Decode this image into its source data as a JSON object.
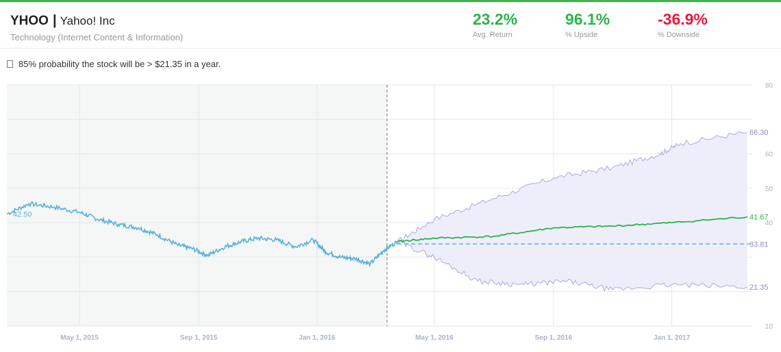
{
  "header": {
    "ticker": "YHOO",
    "separator": "|",
    "company": "Yahoo! Inc",
    "sector": "Technology (Internet Content & Information)"
  },
  "stats": [
    {
      "value": "23.2%",
      "label": "Avg. Return",
      "color": "#2db34a"
    },
    {
      "value": "96.1%",
      "label": "% Upside",
      "color": "#2db34a"
    },
    {
      "value": "-36.9%",
      "label": "% Downside",
      "color": "#e8193c"
    }
  ],
  "probability": {
    "icon": "info-icon",
    "text": "85% probability the stock will be > $21.35 in a year."
  },
  "colors": {
    "historical": "#5ab0d8",
    "median": "#2db34a",
    "band": "#a9a9e0",
    "reference": "#5ab0d8"
  },
  "chart_data": {
    "type": "line",
    "x_tick_labels": [
      "May 1, 2015",
      "Sep 1, 2015",
      "Jan 1, 2016",
      "May 1, 2016",
      "Sep 1, 2016",
      "Jan 1, 2017"
    ],
    "ylim": [
      10,
      80
    ],
    "y_ticks": [
      10,
      20,
      30,
      40,
      50,
      60,
      70,
      80
    ],
    "y_tick_labels": [
      "10",
      "",
      "",
      "40",
      "50",
      "60",
      "",
      "80"
    ],
    "value_labels": {
      "start": "42.50",
      "upper": "66.30",
      "median": "41.67",
      "reference": "33.81",
      "lower": "21.35"
    },
    "historical": {
      "dates": [
        "2015-02-15",
        "2015-03-10",
        "2015-04-05",
        "2015-05-01",
        "2015-05-20",
        "2015-06-10",
        "2015-07-01",
        "2015-07-20",
        "2015-08-10",
        "2015-08-25",
        "2015-09-10",
        "2015-09-28",
        "2015-10-15",
        "2015-11-01",
        "2015-11-20",
        "2015-12-10",
        "2015-12-28",
        "2016-01-10",
        "2016-01-25",
        "2016-02-10",
        "2016-02-25",
        "2016-03-10",
        "2016-03-24"
      ],
      "values": [
        42.5,
        45.5,
        44.5,
        43.0,
        41.0,
        39.5,
        38.5,
        36.5,
        33.5,
        32.5,
        30.5,
        33.0,
        34.5,
        35.5,
        35.0,
        33.0,
        35.0,
        31.5,
        30.0,
        29.5,
        28.0,
        32.0,
        34.5
      ]
    },
    "median_forecast": {
      "dates": [
        "2016-03-24",
        "2016-05-01",
        "2016-07-01",
        "2016-09-01",
        "2016-11-01",
        "2017-01-01",
        "2017-03-20"
      ],
      "values": [
        34.5,
        35.5,
        36.0,
        38.5,
        39.0,
        40.0,
        41.67
      ]
    },
    "upper_band": {
      "dates": [
        "2016-03-24",
        "2016-05-01",
        "2016-07-01",
        "2016-09-01",
        "2016-11-01",
        "2016-12-20",
        "2017-01-10",
        "2017-03-20"
      ],
      "values": [
        34.5,
        41.0,
        47.0,
        53.0,
        56.0,
        60.0,
        63.0,
        66.3
      ]
    },
    "lower_band": {
      "dates": [
        "2016-03-24",
        "2016-05-01",
        "2016-06-15",
        "2016-08-01",
        "2016-09-15",
        "2016-11-01",
        "2017-01-01",
        "2017-03-20"
      ],
      "values": [
        34.5,
        30.0,
        23.0,
        22.0,
        23.0,
        20.5,
        22.0,
        21.35
      ]
    },
    "reference_value": 33.81,
    "split_date": "2016-03-24"
  }
}
